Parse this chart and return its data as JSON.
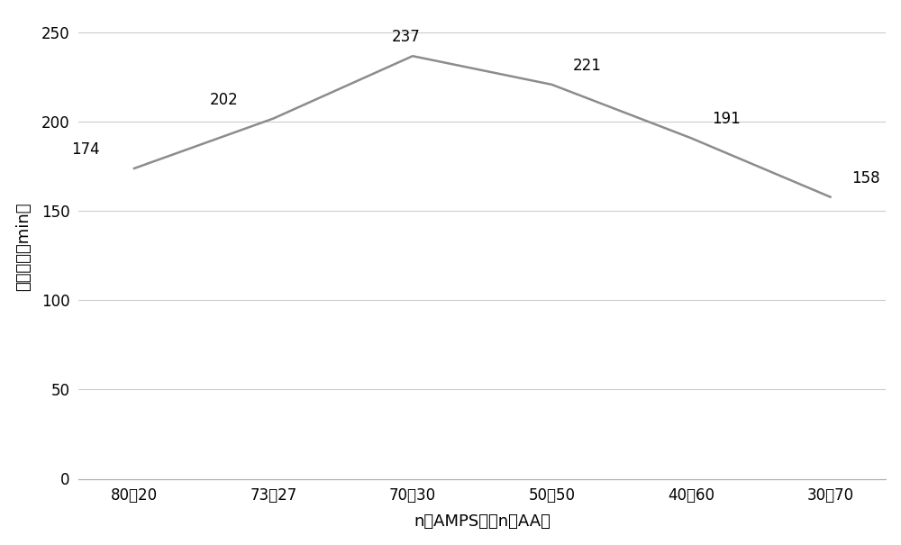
{
  "x_labels": [
    "80：20",
    "73：27",
    "70：30",
    "50：50",
    "40：60",
    "30：70"
  ],
  "y_values": [
    174,
    202,
    237,
    221,
    191,
    158
  ],
  "xlabel": "n（AMPS）：n（AA）",
  "ylabel": "稠化时间（min）",
  "ylim": [
    0,
    260
  ],
  "yticks": [
    0,
    50,
    100,
    150,
    200,
    250
  ],
  "line_color": "#8c8c8c",
  "line_width": 1.8,
  "annotation_fontsize": 12,
  "xlabel_fontsize": 13,
  "ylabel_fontsize": 13,
  "tick_fontsize": 12,
  "background_color": "#ffffff",
  "grid_color": "#cccccc",
  "figure_width": 10.0,
  "figure_height": 6.05
}
